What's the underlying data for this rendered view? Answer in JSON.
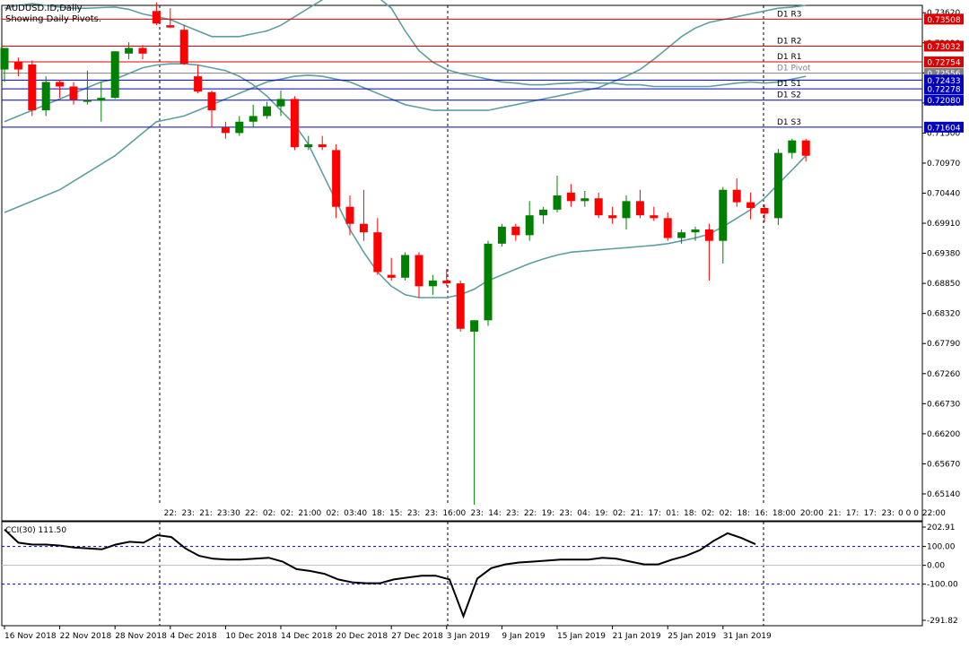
{
  "header": {
    "symbol_line": "AUDUSD.ID,Daily",
    "indicator_line": "Showing Daily Pivots."
  },
  "cci_label": "CCI(30) 111.50",
  "colors": {
    "bull": "#008000",
    "bear": "#ff0000",
    "bollinger": "#5f9ea0",
    "resistance": "#dc0000",
    "support": "#0000c0",
    "pivot": "#808080",
    "cci": "#000000",
    "cci_levels": "#0000c0"
  },
  "chart_data": [
    {
      "type": "candlestick",
      "y_ticks": [
        "0.73620",
        "0.73090",
        "0.72560",
        "0.72030",
        "0.71500",
        "0.70970",
        "0.70440",
        "0.69910",
        "0.69380",
        "0.68850",
        "0.68320",
        "0.67790",
        "0.67260",
        "0.66730",
        "0.66200",
        "0.65670",
        "0.65140"
      ],
      "x_ticks": [
        {
          "label": "16 Nov 2018",
          "i": 0
        },
        {
          "label": "22 Nov 2018",
          "i": 4
        },
        {
          "label": "28 Nov 2018",
          "i": 8
        },
        {
          "label": "4 Dec 2018",
          "i": 12
        },
        {
          "label": "10 Dec 2018",
          "i": 16
        },
        {
          "label": "14 Dec 2018",
          "i": 20
        },
        {
          "label": "20 Dec 2018",
          "i": 24
        },
        {
          "label": "27 Dec 2018",
          "i": 28
        },
        {
          "label": "3 Jan 2019",
          "i": 32
        },
        {
          "label": "9 Jan 2019",
          "i": 36
        },
        {
          "label": "15 Jan 2019",
          "i": 40
        },
        {
          "label": "21 Jan 2019",
          "i": 44
        },
        {
          "label": "25 Jan 2019",
          "i": 48
        },
        {
          "label": "31 Jan 2019",
          "i": 52
        }
      ],
      "candles": [
        [
          0.7262,
          0.73,
          0.724,
          0.73
        ],
        [
          0.7275,
          0.7283,
          0.725,
          0.7262
        ],
        [
          0.7271,
          0.7278,
          0.718,
          0.719
        ],
        [
          0.719,
          0.725,
          0.718,
          0.724
        ],
        [
          0.724,
          0.7244,
          0.7212,
          0.7232
        ],
        [
          0.7232,
          0.724,
          0.72,
          0.7209
        ],
        [
          0.7205,
          0.726,
          0.72,
          0.7208
        ],
        [
          0.7207,
          0.724,
          0.717,
          0.7212
        ],
        [
          0.7212,
          0.7294,
          0.721,
          0.7294
        ],
        [
          0.729,
          0.731,
          0.728,
          0.73
        ],
        [
          0.73,
          0.7305,
          0.728,
          0.729
        ],
        [
          0.7365,
          0.738,
          0.734,
          0.7343
        ],
        [
          0.734,
          0.737,
          0.7335,
          0.7336
        ],
        [
          0.7332,
          0.734,
          0.727,
          0.7272
        ],
        [
          0.725,
          0.727,
          0.722,
          0.7223
        ],
        [
          0.7222,
          0.7225,
          0.716,
          0.719
        ],
        [
          0.716,
          0.717,
          0.714,
          0.715
        ],
        [
          0.715,
          0.718,
          0.7145,
          0.717
        ],
        [
          0.717,
          0.72,
          0.716,
          0.718
        ],
        [
          0.718,
          0.7205,
          0.7175,
          0.7197
        ],
        [
          0.7197,
          0.7225,
          0.718,
          0.721
        ],
        [
          0.721,
          0.7215,
          0.712,
          0.7125
        ],
        [
          0.7125,
          0.7145,
          0.712,
          0.713
        ],
        [
          0.713,
          0.7145,
          0.712,
          0.7125
        ],
        [
          0.712,
          0.713,
          0.7,
          0.702
        ],
        [
          0.702,
          0.704,
          0.697,
          0.699
        ],
        [
          0.699,
          0.705,
          0.696,
          0.6975
        ],
        [
          0.6975,
          0.7,
          0.69,
          0.6905
        ],
        [
          0.69,
          0.693,
          0.689,
          0.6895
        ],
        [
          0.6895,
          0.694,
          0.689,
          0.6935
        ],
        [
          0.6935,
          0.694,
          0.686,
          0.688
        ],
        [
          0.688,
          0.69,
          0.6865,
          0.689
        ],
        [
          0.689,
          0.691,
          0.688,
          0.6885
        ],
        [
          0.6885,
          0.689,
          0.68,
          0.6805
        ],
        [
          0.68,
          0.682,
          0.6495,
          0.682
        ],
        [
          0.682,
          0.696,
          0.681,
          0.6955
        ],
        [
          0.6955,
          0.699,
          0.695,
          0.6985
        ],
        [
          0.6985,
          0.699,
          0.696,
          0.697
        ],
        [
          0.697,
          0.703,
          0.696,
          0.7005
        ],
        [
          0.7005,
          0.702,
          0.699,
          0.7015
        ],
        [
          0.7015,
          0.7075,
          0.701,
          0.704
        ],
        [
          0.7045,
          0.706,
          0.702,
          0.703
        ],
        [
          0.703,
          0.7048,
          0.702,
          0.7035
        ],
        [
          0.7035,
          0.7045,
          0.7,
          0.7005
        ],
        [
          0.7005,
          0.702,
          0.699,
          0.7
        ],
        [
          0.7,
          0.704,
          0.698,
          0.703
        ],
        [
          0.703,
          0.705,
          0.7,
          0.7005
        ],
        [
          0.7005,
          0.702,
          0.6995,
          0.7
        ],
        [
          0.7,
          0.701,
          0.696,
          0.6965
        ],
        [
          0.6965,
          0.698,
          0.6955,
          0.6975
        ],
        [
          0.6975,
          0.6985,
          0.696,
          0.698
        ],
        [
          0.698,
          0.699,
          0.689,
          0.696
        ],
        [
          0.696,
          0.7055,
          0.692,
          0.705
        ],
        [
          0.705,
          0.707,
          0.702,
          0.7028
        ],
        [
          0.7028,
          0.7045,
          0.6998,
          0.7018
        ],
        [
          0.7018,
          0.7024,
          0.6993,
          0.7008
        ],
        [
          0.7,
          0.7122,
          0.6988,
          0.7115
        ],
        [
          0.7115,
          0.714,
          0.7105,
          0.7137
        ],
        [
          0.7137,
          0.714,
          0.71,
          0.711
        ]
      ],
      "bollinger_upper": [
        0.737,
        0.7375,
        0.7378,
        0.7375,
        0.7372,
        0.737,
        0.737,
        0.7371,
        0.7372,
        0.7368,
        0.736,
        0.7355,
        0.735,
        0.734,
        0.733,
        0.732,
        0.732,
        0.732,
        0.7325,
        0.733,
        0.734,
        0.7355,
        0.737,
        0.7385,
        0.7395,
        0.74,
        0.7398,
        0.739,
        0.737,
        0.733,
        0.7295,
        0.7275,
        0.7262,
        0.7255,
        0.725,
        0.7245,
        0.724,
        0.7238,
        0.7235,
        0.7235,
        0.7237,
        0.7238,
        0.724,
        0.7238,
        0.7238,
        0.7235,
        0.7235,
        0.7232,
        0.7232,
        0.7232,
        0.7232,
        0.7232,
        0.7235,
        0.7238,
        0.724,
        0.7238,
        0.724,
        0.7245,
        0.725
      ],
      "bollinger_middle": [
        0.717,
        0.718,
        0.719,
        0.72,
        0.721,
        0.722,
        0.723,
        0.724,
        0.7245,
        0.7255,
        0.7265,
        0.727,
        0.7272,
        0.7272,
        0.727,
        0.7265,
        0.726,
        0.725,
        0.7235,
        0.7215,
        0.719,
        0.7165,
        0.713,
        0.708,
        0.703,
        0.698,
        0.694,
        0.6905,
        0.688,
        0.6865,
        0.686,
        0.686,
        0.686,
        0.6865,
        0.6875,
        0.689,
        0.69,
        0.691,
        0.692,
        0.6928,
        0.6935,
        0.694,
        0.6942,
        0.6944,
        0.6946,
        0.6948,
        0.695,
        0.6952,
        0.6955,
        0.696,
        0.6965,
        0.6972,
        0.6985,
        0.7,
        0.7015,
        0.7035,
        0.706,
        0.7085,
        0.711
      ],
      "bollinger_lower": [
        0.701,
        0.702,
        0.703,
        0.704,
        0.705,
        0.7065,
        0.708,
        0.7095,
        0.711,
        0.713,
        0.715,
        0.717,
        0.7175,
        0.718,
        0.719,
        0.72,
        0.721,
        0.722,
        0.723,
        0.724,
        0.7245,
        0.725,
        0.7252,
        0.725,
        0.7245,
        0.724,
        0.723,
        0.722,
        0.721,
        0.72,
        0.7195,
        0.719,
        0.719,
        0.719,
        0.719,
        0.719,
        0.7195,
        0.72,
        0.7205,
        0.721,
        0.7215,
        0.722,
        0.7225,
        0.723,
        0.724,
        0.725,
        0.7262,
        0.728,
        0.73,
        0.732,
        0.7335,
        0.7345,
        0.735,
        0.7355,
        0.736,
        0.7365,
        0.737,
        0.7372,
        0.7375
      ],
      "pivots": [
        {
          "name": "D1 R3",
          "price": 0.73508,
          "badge": "0.73508",
          "kind": "resistance"
        },
        {
          "name": "D1 R2",
          "price": 0.73032,
          "badge": "0.73032",
          "kind": "resistance"
        },
        {
          "name": "D1 R1",
          "price": 0.72754,
          "badge": "0.72754",
          "kind": "resistance"
        },
        {
          "name": "D1 Pivot",
          "price": 0.72556,
          "badge": "0.72556",
          "kind": "pivot"
        },
        {
          "name": "",
          "price": 0.72433,
          "badge": "0.72433",
          "kind": "support"
        },
        {
          "name": "D1 S1",
          "price": 0.72278,
          "badge": "0.72278",
          "kind": "support"
        },
        {
          "name": "D1 S2",
          "price": 0.7208,
          "badge": "0.72080",
          "kind": "support"
        },
        {
          "name": "D1 S3",
          "price": 0.71604,
          "badge": "0.71604",
          "kind": "support"
        }
      ],
      "time_strip": [
        "22:",
        "23:",
        "21:",
        "23:30",
        "22:",
        "02:",
        "02:",
        "21:00",
        "02:",
        "03:40",
        "18:",
        "15:",
        "23:",
        "23:",
        "16:00",
        "23:",
        "14:",
        "23:",
        "22:",
        "19:",
        "23:",
        "04:",
        "19:",
        "02:",
        "21:",
        "17:",
        "01:",
        "18:",
        "02:",
        "02:",
        "18:",
        "16:",
        "18:00",
        "20:00",
        "21:",
        "17:",
        "17:",
        "23:",
        "0",
        "0",
        "0",
        "22:00"
      ]
    },
    {
      "type": "line",
      "title": "CCI(30) 111.50",
      "y_ticks": [
        "202.91",
        "100.00",
        "0.00",
        "-100.00",
        "-291.82"
      ],
      "levels": [
        100,
        -100
      ],
      "values": [
        190,
        120,
        110,
        110,
        105,
        95,
        90,
        85,
        110,
        125,
        120,
        160,
        150,
        90,
        50,
        35,
        30,
        30,
        35,
        40,
        20,
        -20,
        -30,
        -45,
        -75,
        -90,
        -95,
        -95,
        -75,
        -65,
        -55,
        -55,
        -75,
        -270,
        -70,
        -15,
        5,
        15,
        20,
        25,
        30,
        30,
        30,
        40,
        35,
        20,
        5,
        5,
        30,
        50,
        80,
        130,
        170,
        145,
        112
      ]
    }
  ]
}
